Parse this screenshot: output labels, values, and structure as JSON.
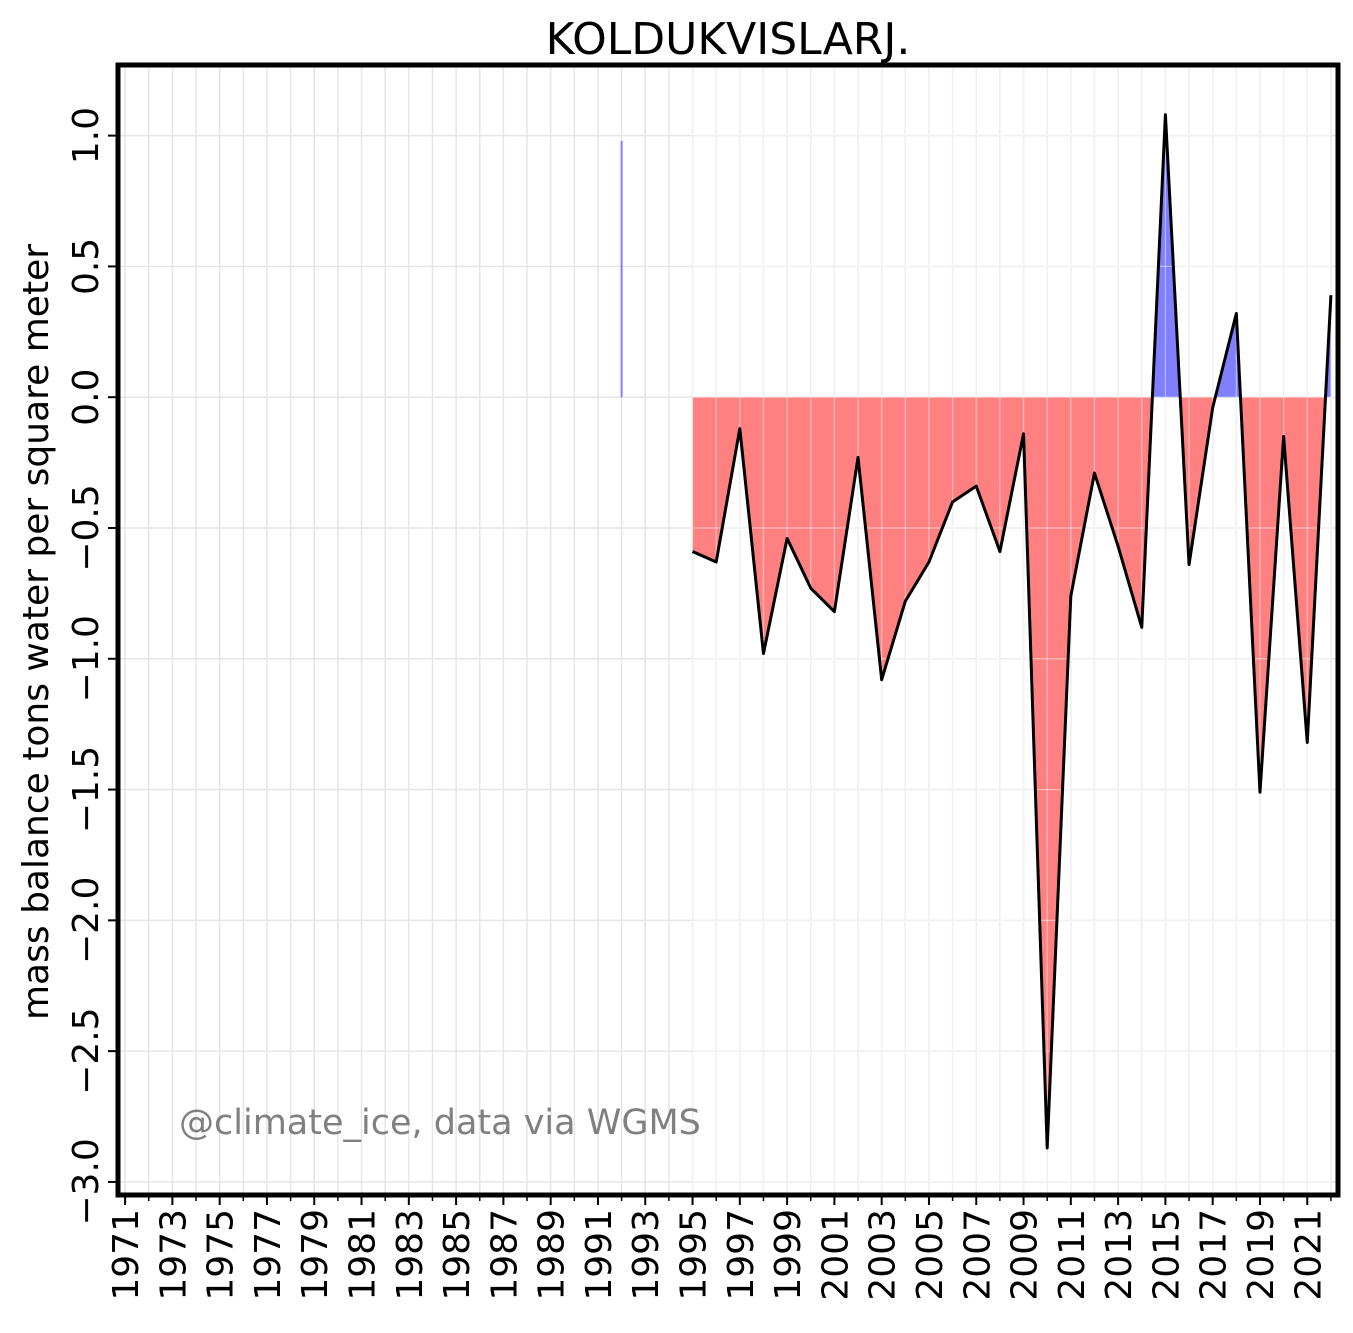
{
  "chart_data": {
    "type": "area",
    "title": "KOLDUKVISLARJ.",
    "ylabel": "mass balance tons water per square meter",
    "xlabel": "",
    "xlim": [
      1970.7,
      2022.3
    ],
    "ylim": [
      -3.05,
      1.27
    ],
    "x_ticks": [
      1971,
      1973,
      1975,
      1977,
      1979,
      1981,
      1983,
      1985,
      1987,
      1989,
      1991,
      1993,
      1995,
      1997,
      1999,
      2001,
      2003,
      2005,
      2007,
      2009,
      2011,
      2013,
      2015,
      2017,
      2019,
      2021
    ],
    "x_tick_labels": [
      "1971",
      "1973",
      "1975",
      "1977",
      "1979",
      "1981",
      "1983",
      "1985",
      "1987",
      "1989",
      "1991",
      "1993",
      "1995",
      "1997",
      "1999",
      "2001",
      "2003",
      "2005",
      "2007",
      "2009",
      "2011",
      "2013",
      "2015",
      "2017",
      "2019",
      "2021"
    ],
    "y_ticks": [
      -3.0,
      -2.5,
      -2.0,
      -1.5,
      -1.0,
      -0.5,
      0.0,
      0.5,
      1.0
    ],
    "y_tick_labels": [
      "−3.0",
      "−2.5",
      "−2.0",
      "−1.5",
      "−1.0",
      "−0.5",
      "0.0",
      "0.5",
      "1.0"
    ],
    "grid": true,
    "isolated_bar": {
      "x": 1992,
      "y": 0.98
    },
    "x": [
      1995,
      1996,
      1997,
      1998,
      1999,
      2000,
      2001,
      2002,
      2003,
      2004,
      2005,
      2006,
      2007,
      2008,
      2009,
      2010,
      2011,
      2012,
      2013,
      2014,
      2015,
      2016,
      2017,
      2018,
      2019,
      2020,
      2021,
      2022
    ],
    "values": [
      -0.59,
      -0.63,
      -0.12,
      -0.98,
      -0.54,
      -0.73,
      -0.82,
      -0.23,
      -1.08,
      -0.78,
      -0.63,
      -0.4,
      -0.34,
      -0.59,
      -0.14,
      -2.87,
      -0.76,
      -0.29,
      -0.57,
      -0.88,
      1.08,
      -0.64,
      -0.04,
      0.32,
      -1.51,
      -0.15,
      -1.32,
      0.39
    ],
    "colors": {
      "positive": "#8080ff",
      "negative": "#ff8080",
      "line": "#000000",
      "grid": "#e6e6e6"
    }
  },
  "credit": "@climate_ice, data via WGMS"
}
